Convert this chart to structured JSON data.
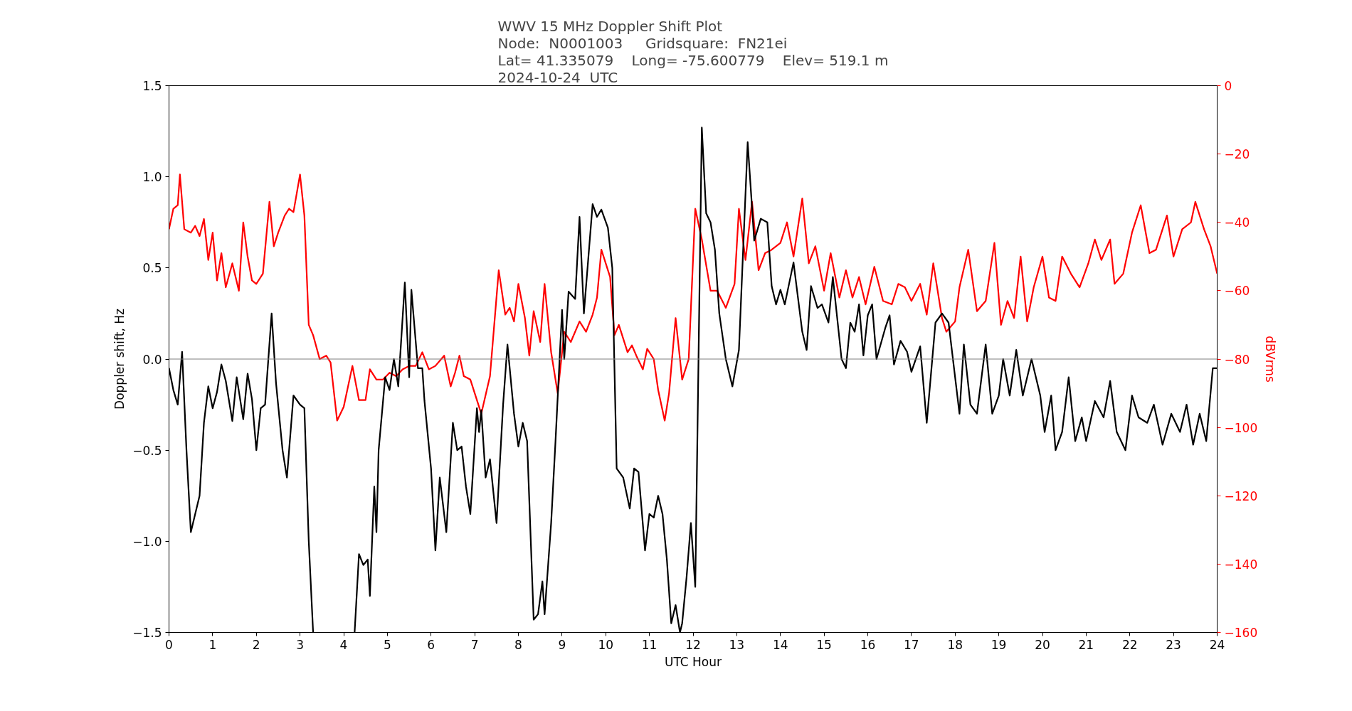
{
  "chart_data": {
    "type": "line",
    "title": "WWV 15 MHz Doppler Shift Plot\nNode:  N0001003     Gridsquare:  FN21ei\nLat= 41.335079    Long= -75.600779    Elev= 519.1 m\n2024-10-24  UTC",
    "xlabel": "UTC Hour",
    "ylabel": "Doppler shift, Hz",
    "y2label": "dBVrms",
    "xlim": [
      0,
      24
    ],
    "xticks": [
      0,
      1,
      2,
      3,
      4,
      5,
      6,
      7,
      8,
      9,
      10,
      11,
      12,
      13,
      14,
      15,
      16,
      17,
      18,
      19,
      20,
      21,
      22,
      23,
      24
    ],
    "ylim": [
      -1.5,
      1.5
    ],
    "yticks": [
      {
        "value": -1.5,
        "label": "−1.5"
      },
      {
        "value": -1.0,
        "label": "−1.0"
      },
      {
        "value": -0.5,
        "label": "−0.5"
      },
      {
        "value": 0,
        "label": "0.0"
      },
      {
        "value": 0.5,
        "label": "0.5"
      },
      {
        "value": 1.0,
        "label": "1.0"
      },
      {
        "value": 1.5,
        "label": "1.5"
      }
    ],
    "y2lim": [
      -160,
      0
    ],
    "y2ticks": [
      {
        "value": -160,
        "label": "−160"
      },
      {
        "value": -140,
        "label": "−140"
      },
      {
        "value": -120,
        "label": "−120"
      },
      {
        "value": -100,
        "label": "−100"
      },
      {
        "value": -80,
        "label": "−80"
      },
      {
        "value": -60,
        "label": "−60"
      },
      {
        "value": -40,
        "label": "−40"
      },
      {
        "value": -20,
        "label": "−20"
      },
      0
    ],
    "ref_lines": [
      {
        "axis": "y",
        "value": 0,
        "color": "#808080"
      }
    ],
    "series": [
      {
        "color": "#000000",
        "x": [
          0.0,
          0.1,
          0.2,
          0.3,
          0.4,
          0.5,
          0.7,
          0.8,
          0.9,
          1.0,
          1.1,
          1.2,
          1.3,
          1.45,
          1.55,
          1.7,
          1.8,
          1.9,
          2.0,
          2.1,
          2.2,
          2.35,
          2.45,
          2.6,
          2.7,
          2.85,
          3.0,
          3.1,
          3.2,
          3.3,
          3.8,
          4.25,
          4.35,
          4.45,
          4.55,
          4.6,
          4.7,
          4.75,
          4.8,
          4.95,
          5.05,
          5.15,
          5.25,
          5.4,
          5.5,
          5.55,
          5.7,
          5.8,
          5.85,
          6.0,
          6.1,
          6.2,
          6.35,
          6.5,
          6.6,
          6.7,
          6.8,
          6.9,
          7.05,
          7.1,
          7.15,
          7.25,
          7.35,
          7.5,
          7.65,
          7.75,
          7.9,
          8.0,
          8.1,
          8.2,
          8.35,
          8.45,
          8.55,
          8.6,
          8.75,
          8.85,
          9.0,
          9.05,
          9.15,
          9.3,
          9.4,
          9.5,
          9.6,
          9.7,
          9.8,
          9.9,
          10.05,
          10.15,
          10.25,
          10.4,
          10.55,
          10.65,
          10.75,
          10.9,
          11.0,
          11.1,
          11.2,
          11.3,
          11.4,
          11.5,
          11.6,
          11.7,
          11.75,
          11.85,
          11.95,
          12.05,
          12.2,
          12.3,
          12.4,
          12.5,
          12.6,
          12.75,
          12.9,
          13.05,
          13.25,
          13.4,
          13.55,
          13.7,
          13.8,
          13.9,
          14.0,
          14.1,
          14.3,
          14.5,
          14.6,
          14.7,
          14.85,
          14.95,
          15.1,
          15.2,
          15.4,
          15.5,
          15.6,
          15.7,
          15.8,
          15.9,
          16.0,
          16.1,
          16.2,
          16.4,
          16.5,
          16.6,
          16.75,
          16.9,
          17.0,
          17.2,
          17.35,
          17.55,
          17.7,
          17.85,
          18.0,
          18.1,
          18.2,
          18.35,
          18.5,
          18.7,
          18.85,
          19.0,
          19.1,
          19.25,
          19.4,
          19.55,
          19.75,
          19.95,
          20.05,
          20.2,
          20.3,
          20.45,
          20.6,
          20.75,
          20.9,
          21.0,
          21.2,
          21.4,
          21.55,
          21.7,
          21.9,
          22.05,
          22.2,
          22.4,
          22.55,
          22.75,
          22.95,
          23.15,
          23.3,
          23.45,
          23.6,
          23.75,
          23.9,
          24.0
        ],
        "values": [
          -0.05,
          -0.17,
          -0.25,
          0.04,
          -0.5,
          -0.95,
          -0.75,
          -0.35,
          -0.15,
          -0.27,
          -0.18,
          -0.03,
          -0.12,
          -0.34,
          -0.1,
          -0.33,
          -0.08,
          -0.22,
          -0.5,
          -0.27,
          -0.25,
          0.25,
          -0.13,
          -0.5,
          -0.65,
          -0.2,
          -0.25,
          -0.27,
          -1.0,
          -1.5,
          null,
          -1.5,
          -1.07,
          -1.13,
          -1.1,
          -1.3,
          -0.7,
          -0.95,
          -0.5,
          -0.1,
          -0.17,
          0.0,
          -0.15,
          0.42,
          -0.1,
          0.38,
          -0.05,
          -0.05,
          -0.23,
          -0.6,
          -1.05,
          -0.65,
          -0.95,
          -0.35,
          -0.5,
          -0.48,
          -0.7,
          -0.85,
          -0.27,
          -0.4,
          -0.28,
          -0.65,
          -0.55,
          -0.9,
          -0.25,
          0.08,
          -0.3,
          -0.48,
          -0.35,
          -0.45,
          -1.43,
          -1.4,
          -1.22,
          -1.4,
          -0.9,
          -0.45,
          0.27,
          0.0,
          0.37,
          0.33,
          0.78,
          0.25,
          0.55,
          0.85,
          0.78,
          0.82,
          0.72,
          0.5,
          -0.6,
          -0.65,
          -0.82,
          -0.6,
          -0.62,
          -1.05,
          -0.85,
          -0.87,
          -0.75,
          -0.85,
          -1.1,
          -1.45,
          -1.35,
          -1.5,
          -1.45,
          -1.2,
          -0.9,
          -1.25,
          1.27,
          0.8,
          0.75,
          0.6,
          0.25,
          0.0,
          -0.15,
          0.05,
          1.19,
          0.65,
          0.77,
          0.75,
          0.4,
          0.3,
          0.38,
          0.3,
          0.53,
          0.15,
          0.05,
          0.4,
          0.28,
          0.3,
          0.2,
          0.45,
          0.0,
          -0.05,
          0.2,
          0.15,
          0.3,
          0.02,
          0.24,
          0.3,
          0.0,
          0.17,
          0.24,
          -0.03,
          0.1,
          0.04,
          -0.07,
          0.07,
          -0.35,
          0.2,
          0.25,
          0.2,
          -0.1,
          -0.3,
          0.08,
          -0.25,
          -0.3,
          0.08,
          -0.3,
          -0.2,
          0.0,
          -0.2,
          0.05,
          -0.2,
          0.0,
          -0.2,
          -0.4,
          -0.2,
          -0.5,
          -0.4,
          -0.1,
          -0.45,
          -0.32,
          -0.45,
          -0.23,
          -0.32,
          -0.12,
          -0.4,
          -0.5,
          -0.2,
          -0.32,
          -0.35,
          -0.25,
          -0.47,
          -0.3,
          -0.4,
          -0.25,
          -0.47,
          -0.3,
          -0.45,
          -0.05,
          -0.05
        ]
      },
      {
        "color": "#ff0000",
        "axis": "y2",
        "x": [
          0.0,
          0.1,
          0.2,
          0.25,
          0.35,
          0.5,
          0.6,
          0.7,
          0.8,
          0.9,
          1.0,
          1.1,
          1.2,
          1.3,
          1.45,
          1.6,
          1.7,
          1.8,
          1.9,
          2.0,
          2.15,
          2.3,
          2.4,
          2.5,
          2.65,
          2.75,
          2.85,
          3.0,
          3.1,
          3.2,
          3.3,
          3.45,
          3.6,
          3.7,
          3.85,
          4.0,
          4.2,
          4.35,
          4.5,
          4.6,
          4.75,
          4.9,
          5.05,
          5.2,
          5.35,
          5.5,
          5.65,
          5.8,
          5.95,
          6.1,
          6.3,
          6.45,
          6.55,
          6.65,
          6.75,
          6.9,
          7.05,
          7.15,
          7.35,
          7.55,
          7.7,
          7.8,
          7.9,
          8.0,
          8.15,
          8.25,
          8.35,
          8.5,
          8.6,
          8.75,
          8.9,
          9.05,
          9.2,
          9.4,
          9.55,
          9.7,
          9.8,
          9.9,
          10.1,
          10.2,
          10.3,
          10.5,
          10.6,
          10.7,
          10.85,
          10.95,
          11.1,
          11.2,
          11.35,
          11.45,
          11.6,
          11.75,
          11.9,
          12.05,
          12.2,
          12.4,
          12.55,
          12.75,
          12.95,
          13.05,
          13.2,
          13.35,
          13.5,
          13.65,
          13.8,
          14.0,
          14.15,
          14.3,
          14.5,
          14.65,
          14.8,
          15.0,
          15.15,
          15.35,
          15.5,
          15.65,
          15.8,
          15.95,
          16.15,
          16.35,
          16.55,
          16.7,
          16.85,
          17.0,
          17.2,
          17.35,
          17.5,
          17.7,
          17.8,
          18.0,
          18.1,
          18.3,
          18.5,
          18.7,
          18.9,
          19.05,
          19.2,
          19.35,
          19.5,
          19.65,
          19.8,
          20.0,
          20.15,
          20.3,
          20.45,
          20.65,
          20.85,
          21.05,
          21.2,
          21.35,
          21.55,
          21.65,
          21.85,
          22.05,
          22.25,
          22.45,
          22.6,
          22.85,
          23.0,
          23.2,
          23.4,
          23.5,
          23.7,
          23.85,
          24.0
        ],
        "values": [
          -42,
          -36,
          -35,
          -26,
          -42,
          -43,
          -41,
          -44,
          -39,
          -51,
          -43,
          -57,
          -49,
          -59,
          -52,
          -60,
          -40,
          -50,
          -57,
          -58,
          -55,
          -34,
          -47,
          -43,
          -38,
          -36,
          -37,
          -26,
          -38,
          -70,
          -73,
          -80,
          -79,
          -81,
          -98,
          -94,
          -82,
          -92,
          -92,
          -83,
          -86,
          -86,
          -84,
          -85,
          -83,
          -82,
          -82,
          -78,
          -83,
          -82,
          -79,
          -88,
          -84,
          -79,
          -85,
          -86,
          -92,
          -96,
          -85,
          -54,
          -67,
          -65,
          -69,
          -58,
          -68,
          -79,
          -66,
          -75,
          -58,
          -78,
          -90,
          -72,
          -75,
          -69,
          -72,
          -67,
          -62,
          -48,
          -56,
          -73,
          -70,
          -78,
          -76,
          -79,
          -83,
          -77,
          -80,
          -89,
          -98,
          -90,
          -68,
          -86,
          -80,
          -36,
          -45,
          -60,
          -60,
          -65,
          -58,
          -36,
          -51,
          -34,
          -54,
          -49,
          -48,
          -46,
          -40,
          -50,
          -33,
          -52,
          -47,
          -60,
          -49,
          -62,
          -54,
          -62,
          -56,
          -64,
          -53,
          -63,
          -64,
          -58,
          -59,
          -63,
          -58,
          -67,
          -52,
          -68,
          -72,
          -69,
          -59,
          -48,
          -66,
          -63,
          -46,
          -70,
          -63,
          -68,
          -50,
          -69,
          -59,
          -50,
          -62,
          -63,
          -50,
          -55,
          -59,
          -52,
          -45,
          -51,
          -45,
          -58,
          -55,
          -43,
          -35,
          -49,
          -48,
          -38,
          -50,
          -42,
          -40,
          -34,
          -42,
          -47,
          -55
        ]
      }
    ]
  }
}
